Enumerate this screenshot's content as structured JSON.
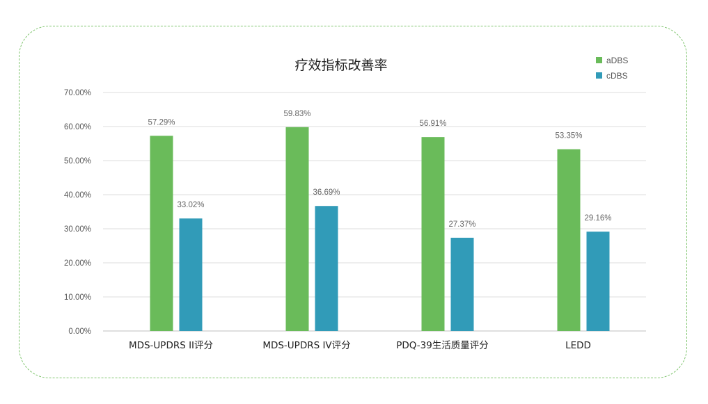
{
  "chart_data": {
    "type": "bar",
    "title": "疗效指标改善率",
    "categories": [
      "MDS-UPDRS II评分",
      "MDS-UPDRS IV评分",
      "PDQ-39生活质量评分",
      "LEDD"
    ],
    "series": [
      {
        "name": "aDBS",
        "color": "#6abb5a",
        "values": [
          57.29,
          59.83,
          56.91,
          53.35
        ],
        "labels": [
          "57.29%",
          "59.83%",
          "56.91%",
          "53.35%"
        ]
      },
      {
        "name": "cDBS",
        "color": "#319bb8",
        "values": [
          33.02,
          36.69,
          27.37,
          29.16
        ],
        "labels": [
          "33.02%",
          "36.69%",
          "27.37%",
          "29.16%"
        ]
      }
    ],
    "ylim": [
      0,
      70
    ],
    "yticks": [
      "0.00%",
      "10.00%",
      "20.00%",
      "30.00%",
      "40.00%",
      "50.00%",
      "60.00%",
      "70.00%"
    ],
    "xlabel": "",
    "ylabel": "",
    "grid": true,
    "legend_position": "top-right"
  },
  "frame": {
    "border_color": "#7cc36a"
  }
}
